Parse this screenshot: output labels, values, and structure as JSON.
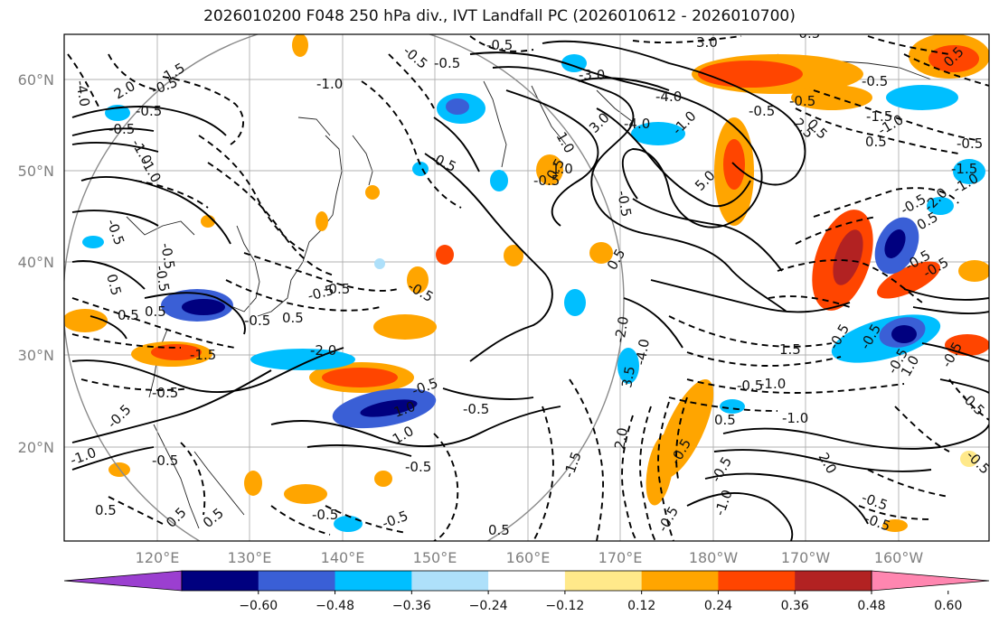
{
  "title": "2026010200 F048 250 hPa div., IVT Landfall PC (2026010612 - 2026010700)",
  "lat_labels": [
    "60°N",
    "50°N",
    "40°N",
    "30°N",
    "20°N"
  ],
  "lon_labels": [
    "120°E",
    "130°E",
    "140°E",
    "150°E",
    "160°E",
    "170°E",
    "180°W",
    "170°W",
    "160°W"
  ],
  "colorbar": {
    "ticks": [
      "−0.60",
      "−0.48",
      "−0.36",
      "−0.24",
      "−0.12",
      "0.12",
      "0.24",
      "0.36",
      "0.48",
      "0.60"
    ],
    "colors": [
      "#9b3fd0",
      "#00007f",
      "#3a5fd6",
      "#00bfff",
      "#aee0fa",
      "#ffffff",
      "#ffe98a",
      "#ffa500",
      "#ff4500",
      "#b22222",
      "#ff86b0"
    ]
  },
  "contour_labels": [
    "-4.0",
    "-0.5",
    "-0.5",
    "-0.5",
    "3.0",
    "-0.5",
    "2.0",
    "-1.0",
    "-0.5",
    "0.5",
    "-3.0",
    "-4.0",
    "-0.5",
    "-0.5",
    "-0.5",
    "2.5",
    "0.5",
    "0.5",
    "-1.5",
    "-0.5",
    "-1.0",
    "1.5",
    "-1.0",
    "-0.5",
    "-0.5",
    "-1.0",
    "-0.5",
    "1.0",
    "-0.5",
    "-0.5",
    "-0.5",
    "-0.5",
    "0.5",
    "-0.5",
    "3.0",
    "-4.0",
    "0.5",
    "1.0",
    "-1.0",
    "-0.5",
    "5.0",
    "0.5",
    "-0.5",
    "0.5",
    "-2.0",
    "-1.0",
    "-1.5",
    "-0.5",
    "-0.5",
    "0.5",
    "0.5",
    "-2.0",
    "-0.5",
    "-1.5",
    "-0.5",
    "0.5",
    "1.0",
    "2.0",
    "-1.5",
    "-0.5",
    "-2.0",
    "3.5",
    "-4.0",
    "-0.5",
    "-0.5",
    "1.0",
    "-1.0",
    "-0.5",
    "1.5",
    "0.5",
    "-0.5",
    "-0.5",
    "-1.0",
    "-0.5",
    "1.0",
    "-0.5",
    "-0.5",
    "-0.5",
    "2.0",
    "-0.5",
    "-0.5",
    "-0.5",
    "-1.0",
    "-0.5",
    "-0.5",
    "0.5",
    "0.5",
    "-0.5",
    "-0.5",
    "-0.5",
    "0.5",
    "-0.5",
    "-0.5",
    "-1.0",
    "-0.5",
    "0.5"
  ]
}
